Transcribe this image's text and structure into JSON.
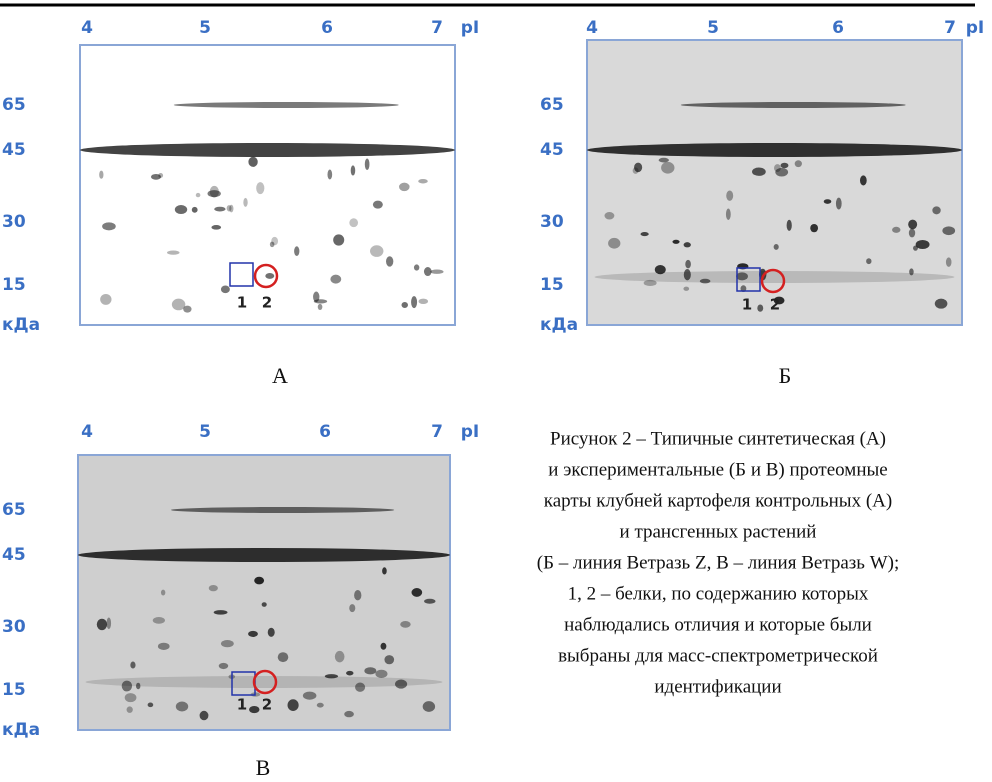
{
  "panels": [
    {
      "letter": "А",
      "x_labels": [
        "4",
        "5",
        "6",
        "7"
      ],
      "x_unit": "pI",
      "y_labels": [
        "65",
        "45",
        "30",
        "15"
      ],
      "y_unit": "кДа",
      "spot_labels": [
        "1",
        "2"
      ]
    },
    {
      "letter": "Б",
      "x_labels": [
        "4",
        "5",
        "6",
        "7"
      ],
      "x_unit": "pI",
      "y_labels": [
        "65",
        "45",
        "30",
        "15"
      ],
      "y_unit": "кДа",
      "spot_labels": [
        "1",
        "2"
      ]
    },
    {
      "letter": "В",
      "x_labels": [
        "4",
        "5",
        "6",
        "7"
      ],
      "x_unit": "pI",
      "y_labels": [
        "65",
        "45",
        "30",
        "15"
      ],
      "y_unit": "кДа",
      "spot_labels": [
        "1",
        "2"
      ]
    }
  ],
  "caption": [
    "Рисунок 2 – Типичные синтетическая (А)",
    "и экспериментальные (Б и В) протеомные",
    "карты клубней картофеля контрольных (А)",
    "и трансгенных растений",
    "(Б – линия Ветразь Z, В – линия Ветразь W);",
    "1, 2 – белки, по содержанию которых",
    "наблюдались отличия и которые были",
    "выбраны для масс-спектрометрической",
    "идентификации"
  ]
}
